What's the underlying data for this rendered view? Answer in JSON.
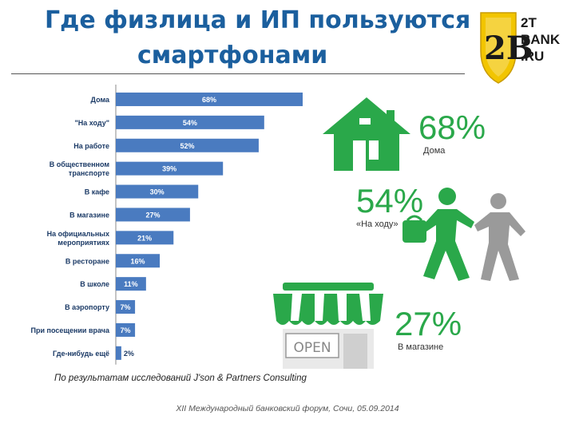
{
  "title": {
    "line1": "Где физлица и ИП пользуются",
    "line2": "смартфонами"
  },
  "logo": {
    "mark": "2B",
    "line1": "2T",
    "line2": "BANK",
    "line3": ".RU"
  },
  "chart_data": {
    "type": "bar",
    "orientation": "horizontal",
    "categories": [
      "Дома",
      "\"На ходу\"",
      "На работе",
      "В общественном транспорте",
      "В кафе",
      "В магазине",
      "На официальных мероприятиях",
      "В ресторане",
      "В школе",
      "В аэропорту",
      "При посещении врача",
      "Где-нибудь ещё"
    ],
    "category_lines": [
      [
        "Дома"
      ],
      [
        "\"На ходу\""
      ],
      [
        "На работе"
      ],
      [
        "В общественном",
        "транспорте"
      ],
      [
        "В кафе"
      ],
      [
        "В магазине"
      ],
      [
        "На официальных",
        "мероприятиях"
      ],
      [
        "В ресторане"
      ],
      [
        "В школе"
      ],
      [
        "В аэропорту"
      ],
      [
        "При посещении врача"
      ],
      [
        "Где-нибудь ещё"
      ]
    ],
    "values": [
      68,
      54,
      52,
      39,
      30,
      27,
      21,
      16,
      11,
      7,
      7,
      2
    ],
    "value_labels": [
      "68%",
      "54%",
      "52%",
      "39%",
      "30%",
      "27%",
      "21%",
      "16%",
      "11%",
      "7%",
      "7%",
      "2%"
    ],
    "xlim": [
      0,
      70
    ],
    "bar_color": "#4a7bc0",
    "title": "",
    "xlabel": "",
    "ylabel": ""
  },
  "highlights": [
    {
      "value": "68%",
      "label": "Дома"
    },
    {
      "value": "54%",
      "label": "«На ходу»"
    },
    {
      "value": "27%",
      "label": "В магазине"
    }
  ],
  "illustrations": {
    "shop_sign": "OPEN"
  },
  "colors": {
    "accent": "#2aa84a",
    "title": "#1b5f9e",
    "figure_gray": "#a9a9a9"
  },
  "source": "По результатам исследований J'son & Partners Consulting",
  "footer": "XII Международный банковский форум, Сочи, 05.09.2014"
}
